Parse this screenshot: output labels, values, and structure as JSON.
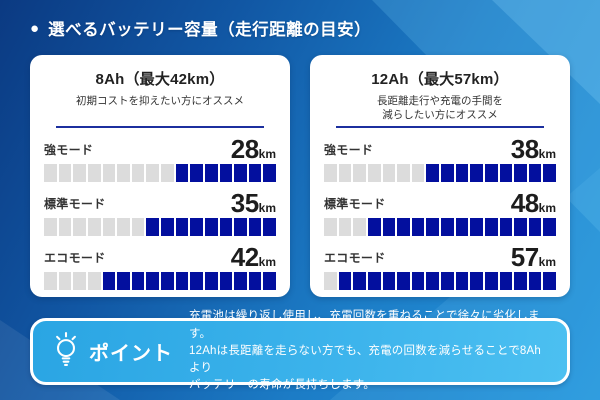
{
  "header": {
    "bullet": "●",
    "title": "選べるバッテリー容量（走行距離の目安）"
  },
  "colors": {
    "background_dark": "#0b3a82",
    "background_light": "#2496dc",
    "segment_gray": "#dcdcdc",
    "segment_blue": "#030f9e",
    "divider_navy": "#1c2f9e",
    "point_box_blue": "#3db4ec",
    "card_white": "#ffffff",
    "text_dark": "#222222",
    "text_white": "#ffffff"
  },
  "cards": [
    {
      "title": "8Ah（最大42km）",
      "subtitle_lines": [
        "初期コストを抑えたい方にオススメ"
      ],
      "rows": [
        {
          "mode": "強モード",
          "value": "28",
          "unit": "km",
          "gray": 9,
          "blue": 7
        },
        {
          "mode": "標準モード",
          "value": "35",
          "unit": "km",
          "gray": 7,
          "blue": 9
        },
        {
          "mode": "エコモード",
          "value": "42",
          "unit": "km",
          "gray": 4,
          "blue": 12
        }
      ]
    },
    {
      "title": "12Ah（最大57km）",
      "subtitle_lines": [
        "長距離走行や充電の手間を",
        "減らしたい方にオススメ"
      ],
      "rows": [
        {
          "mode": "強モード",
          "value": "38",
          "unit": "km",
          "gray": 7,
          "blue": 9
        },
        {
          "mode": "標準モード",
          "value": "48",
          "unit": "km",
          "gray": 3,
          "blue": 13
        },
        {
          "mode": "エコモード",
          "value": "57",
          "unit": "km",
          "gray": 1,
          "blue": 15
        }
      ]
    }
  ],
  "point": {
    "label": "ポイント",
    "icon": "lightbulb-icon",
    "lines": [
      "充電池は繰り返し使用し、充電回数を重ねることで徐々に劣化します。",
      "12Ahは長距離を走らない方でも、充電の回数を減らせることで8Ahより",
      "バッテリーの寿命が長持ちします。"
    ]
  },
  "chart_data": {
    "type": "bar",
    "title": "選べるバッテリー容量（走行距離の目安）",
    "categories": [
      "強モード",
      "標準モード",
      "エコモード"
    ],
    "series": [
      {
        "name": "8Ah（最大42km）",
        "values": [
          28,
          35,
          42
        ]
      },
      {
        "name": "12Ah（最大57km）",
        "values": [
          38,
          48,
          57
        ]
      }
    ],
    "unit": "km",
    "segments_per_gauge": 16,
    "gauge_fill_direction": "right",
    "legend_position": "card-titles",
    "grid": false
  }
}
